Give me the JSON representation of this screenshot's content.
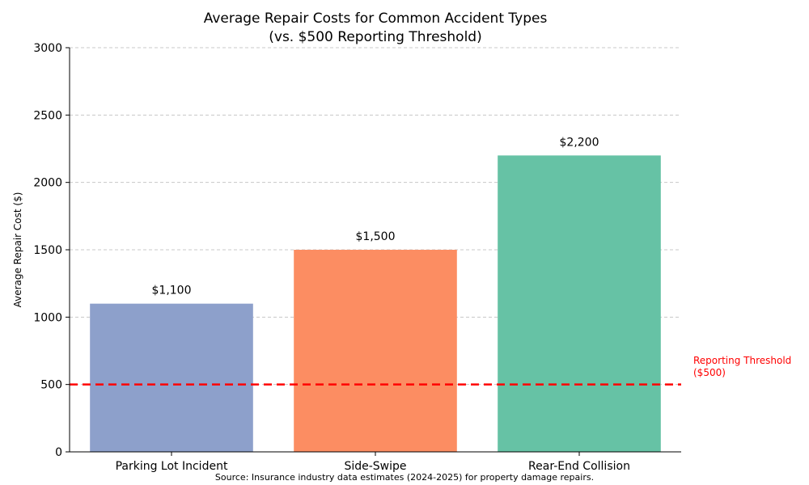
{
  "chart_data": {
    "type": "bar",
    "title": "Average Repair Costs for Common Accident Types",
    "subtitle": "(vs. $500 Reporting Threshold)",
    "xlabel": "",
    "ylabel": "Average Repair Cost ($)",
    "categories": [
      "Parking Lot Incident",
      "Side-Swipe",
      "Rear-End Collision"
    ],
    "values": [
      1100,
      1500,
      2200
    ],
    "data_labels": [
      "$1,100",
      "$1,500",
      "$2,200"
    ],
    "colors": [
      "#8DA0CB",
      "#FC8D62",
      "#66C2A5"
    ],
    "ylim": [
      0,
      3000
    ],
    "yticks": [
      0,
      500,
      1000,
      1500,
      2000,
      2500,
      3000
    ],
    "grid": "y-dashed",
    "threshold": {
      "value": 500,
      "label_line1": "Reporting Threshold",
      "label_line2": "($500)",
      "color": "#FF0000"
    },
    "source": "Source: Insurance industry data estimates (2024-2025) for property damage repairs."
  }
}
